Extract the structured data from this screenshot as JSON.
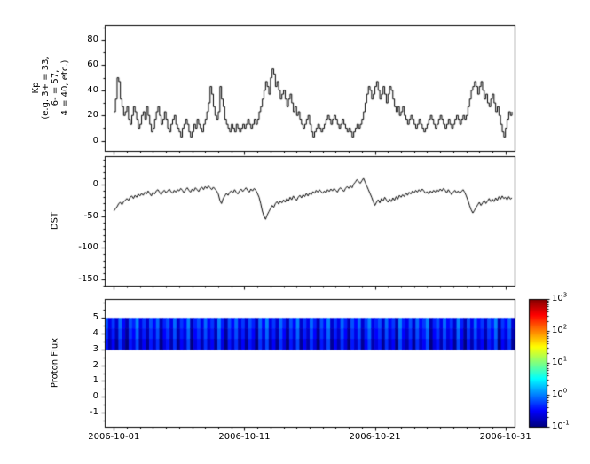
{
  "axes": {
    "x": {
      "tick_labels": [
        "2006-10-01",
        "2006-10-11",
        "2006-10-21",
        "2006-10-31"
      ],
      "tick_days": [
        0,
        10,
        20,
        30
      ],
      "range_days": [
        -0.7,
        30.7
      ]
    }
  },
  "line_color": "#000000",
  "chart_data": [
    {
      "id": "kp",
      "type": "line",
      "style": "steps-post",
      "ylabel_lines": [
        "Kp",
        "(e.g. 3+ = 33,",
        "6- = 57,",
        "4 = 40, etc.)"
      ],
      "ylim": [
        -8,
        92
      ],
      "yticks": [
        0,
        20,
        40,
        60,
        80
      ],
      "minor_y_step": 10,
      "step_hours": 3,
      "x_start": "2006-10-01",
      "x_end": "2006-10-31",
      "values": [
        23,
        33,
        50,
        47,
        33,
        27,
        20,
        23,
        27,
        17,
        13,
        20,
        27,
        23,
        17,
        10,
        13,
        20,
        23,
        17,
        27,
        20,
        13,
        7,
        10,
        17,
        23,
        27,
        20,
        13,
        17,
        23,
        17,
        10,
        7,
        13,
        17,
        20,
        13,
        10,
        7,
        3,
        10,
        13,
        17,
        13,
        7,
        3,
        7,
        13,
        10,
        17,
        13,
        10,
        7,
        13,
        17,
        23,
        30,
        43,
        37,
        27,
        20,
        17,
        23,
        43,
        33,
        27,
        17,
        13,
        10,
        7,
        13,
        10,
        7,
        13,
        10,
        7,
        10,
        13,
        10,
        13,
        17,
        13,
        10,
        13,
        17,
        13,
        17,
        23,
        27,
        33,
        40,
        47,
        43,
        37,
        50,
        57,
        53,
        43,
        47,
        40,
        33,
        37,
        40,
        33,
        27,
        33,
        37,
        30,
        23,
        27,
        20,
        23,
        17,
        13,
        10,
        13,
        17,
        20,
        13,
        7,
        3,
        7,
        10,
        13,
        10,
        7,
        10,
        13,
        17,
        20,
        17,
        13,
        17,
        20,
        17,
        13,
        10,
        13,
        17,
        13,
        10,
        7,
        10,
        7,
        3,
        7,
        10,
        13,
        10,
        13,
        17,
        23,
        30,
        37,
        43,
        40,
        33,
        37,
        43,
        47,
        40,
        33,
        37,
        43,
        37,
        30,
        37,
        43,
        40,
        33,
        27,
        23,
        27,
        20,
        23,
        27,
        20,
        17,
        13,
        17,
        20,
        17,
        13,
        10,
        13,
        17,
        13,
        10,
        7,
        10,
        13,
        17,
        20,
        17,
        13,
        10,
        13,
        17,
        20,
        17,
        13,
        10,
        13,
        17,
        13,
        10,
        13,
        17,
        20,
        17,
        13,
        17,
        20,
        17,
        20,
        27,
        33,
        40,
        43,
        47,
        43,
        37,
        43,
        47,
        40,
        33,
        37,
        30,
        27,
        33,
        37,
        30,
        23,
        27,
        20,
        13,
        7,
        3,
        10,
        17,
        23,
        20,
        23
      ]
    },
    {
      "id": "dst",
      "type": "line",
      "style": "line",
      "ylabel": "DST",
      "ylim": [
        -160,
        45
      ],
      "yticks": [
        0,
        -50,
        -100,
        -150
      ],
      "minor_y_step": 10,
      "step_hours": 3,
      "values": [
        -42,
        -38,
        -35,
        -30,
        -28,
        -32,
        -27,
        -25,
        -22,
        -25,
        -20,
        -18,
        -22,
        -17,
        -20,
        -15,
        -18,
        -14,
        -17,
        -12,
        -15,
        -10,
        -14,
        -18,
        -12,
        -15,
        -10,
        -8,
        -12,
        -16,
        -11,
        -9,
        -13,
        -10,
        -7,
        -11,
        -14,
        -9,
        -12,
        -8,
        -10,
        -6,
        -9,
        -13,
        -8,
        -5,
        -9,
        -12,
        -7,
        -10,
        -5,
        -8,
        -11,
        -6,
        -4,
        -8,
        -3,
        -6,
        -2,
        -5,
        -8,
        -4,
        -7,
        -10,
        -15,
        -25,
        -30,
        -22,
        -18,
        -14,
        -17,
        -12,
        -10,
        -13,
        -8,
        -12,
        -15,
        -10,
        -7,
        -11,
        -8,
        -5,
        -9,
        -12,
        -7,
        -10,
        -6,
        -9,
        -14,
        -20,
        -30,
        -42,
        -50,
        -55,
        -48,
        -43,
        -38,
        -33,
        -36,
        -30,
        -27,
        -31,
        -26,
        -29,
        -24,
        -28,
        -22,
        -26,
        -20,
        -24,
        -18,
        -22,
        -25,
        -20,
        -17,
        -21,
        -16,
        -19,
        -14,
        -18,
        -13,
        -16,
        -11,
        -14,
        -9,
        -12,
        -8,
        -11,
        -14,
        -10,
        -13,
        -8,
        -11,
        -7,
        -10,
        -6,
        -9,
        -12,
        -7,
        -5,
        -8,
        -11,
        -6,
        -3,
        -6,
        -2,
        -5,
        1,
        4,
        8,
        5,
        2,
        6,
        10,
        4,
        -2,
        -8,
        -14,
        -20,
        -27,
        -33,
        -28,
        -24,
        -29,
        -22,
        -26,
        -20,
        -24,
        -28,
        -23,
        -27,
        -21,
        -25,
        -19,
        -23,
        -17,
        -20,
        -16,
        -19,
        -13,
        -17,
        -12,
        -15,
        -10,
        -13,
        -9,
        -12,
        -8,
        -11,
        -7,
        -10,
        -14,
        -11,
        -15,
        -10,
        -13,
        -9,
        -12,
        -8,
        -11,
        -7,
        -10,
        -6,
        -9,
        -13,
        -8,
        -12,
        -16,
        -12,
        -9,
        -13,
        -10,
        -14,
        -11,
        -8,
        -12,
        -18,
        -25,
        -33,
        -40,
        -45,
        -41,
        -36,
        -32,
        -28,
        -33,
        -29,
        -25,
        -30,
        -26,
        -22,
        -27,
        -23,
        -27,
        -21,
        -25,
        -19,
        -23,
        -18,
        -22,
        -20,
        -24,
        -19,
        -23,
        -21
      ]
    },
    {
      "id": "proton_flux",
      "type": "heatmap",
      "ylabel": "Proton Flux",
      "ylim": [
        -1.9,
        6.2
      ],
      "yticks": [
        -1,
        0,
        1,
        2,
        3,
        4,
        5
      ],
      "minor_y_step": 0.5,
      "band_y": [
        3,
        5
      ],
      "value_log_range": [
        -1,
        3
      ],
      "log10_flux_columns": [
        -0.3,
        -0.7,
        -0.4,
        -0.8,
        -0.2,
        -0.6,
        -0.9,
        -0.3,
        -0.5,
        -0.1,
        -0.7,
        -0.4,
        -0.8,
        -0.3,
        -0.6,
        -0.2,
        -0.9,
        -0.5,
        -0.3,
        -0.7,
        -0.2,
        -0.8,
        -0.4,
        -0.6,
        -0.1,
        -0.9,
        -0.5,
        -0.3,
        -0.7,
        -0.2,
        -0.6,
        -0.4,
        -0.8,
        -0.1,
        -0.5,
        -0.9,
        -0.3,
        -0.6,
        -0.2,
        -0.7,
        -0.4,
        -0.8,
        -0.3,
        -0.5,
        -0.9,
        -0.2,
        -0.6,
        -0.1,
        -0.7,
        -0.4,
        -0.8,
        -0.2,
        -0.5,
        -0.9,
        -0.3,
        -0.6,
        -0.1,
        -0.8,
        -0.4,
        -0.7,
        -0.2,
        -0.5,
        -0.9,
        -0.3,
        -0.6,
        -0.1,
        -0.8,
        -0.4,
        -0.7,
        -0.2,
        -0.5,
        -0.9,
        -0.3,
        -0.6,
        -0.2,
        -0.8,
        -0.4,
        -0.1,
        -0.7,
        -0.5,
        -0.3,
        -0.8,
        -0.2,
        -0.6,
        -0.4,
        -0.9,
        -0.1,
        -0.5,
        -0.7,
        -0.3,
        -0.8,
        -0.2,
        -0.6,
        -0.4,
        -0.1,
        -0.9,
        -0.5,
        -0.3,
        -0.7,
        -0.2,
        -0.6,
        -0.4,
        -0.8,
        -0.1,
        -0.5,
        -0.9,
        -0.3,
        -0.7,
        -0.2,
        -0.6,
        -0.4,
        -0.8,
        -0.3,
        -0.5,
        -0.1,
        -0.9,
        -0.4,
        -0.6,
        -0.2,
        -0.8
      ]
    }
  ],
  "colorbar": {
    "colormap": "jet",
    "log_min": -1,
    "log_max": 3,
    "tick_exponents": [
      3,
      2,
      1,
      0,
      -1
    ],
    "tick_base": "10"
  }
}
